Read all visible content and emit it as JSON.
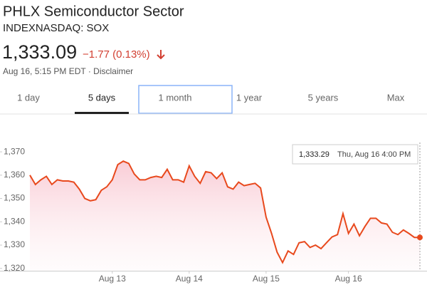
{
  "header": {
    "title": "PHLX Semiconductor Sector",
    "ticker": "INDEXNASDAQ: SOX",
    "price": "1,333.09",
    "change": "−1.77 (0.13%)",
    "timestamp": "Aug 16, 5:15 PM EDT · Disclaimer"
  },
  "tabs": [
    "1 day",
    "5 days",
    "1 month",
    "1 year",
    "5 years",
    "Max"
  ],
  "tooltip": {
    "value": "1,333.29",
    "time": "Thu, Aug 16 4:00 PM"
  },
  "chart_data": {
    "type": "line",
    "color": "#e8491d",
    "grid": false,
    "categories": [
      null,
      null,
      null,
      null,
      null,
      null,
      null,
      null,
      null,
      null,
      null,
      null,
      null,
      null,
      null,
      "Aug 13",
      null,
      null,
      null,
      null,
      null,
      null,
      null,
      null,
      null,
      null,
      null,
      null,
      null,
      "Aug 14",
      null,
      null,
      null,
      null,
      null,
      null,
      null,
      null,
      null,
      null,
      null,
      null,
      null,
      "Aug 15",
      null,
      null,
      null,
      null,
      null,
      null,
      null,
      null,
      null,
      null,
      null,
      null,
      null,
      null,
      "Aug 16",
      null,
      null,
      null,
      null,
      null,
      null,
      null,
      null,
      null,
      null,
      null,
      null,
      null
    ],
    "values": [
      1360,
      1356,
      1358,
      1359.5,
      1356,
      1358,
      1357.5,
      1357.5,
      1357,
      1354,
      1350,
      1349,
      1349.5,
      1353.5,
      1355,
      1358,
      1364.5,
      1366,
      1365,
      1360.5,
      1358,
      1358,
      1359,
      1359.5,
      1359,
      1362.5,
      1358,
      1358,
      1357,
      1364,
      1359.5,
      1356.5,
      1361.5,
      1361,
      1358.5,
      1361,
      1355,
      1354,
      1357,
      1355.5,
      1356,
      1356.5,
      1354.5,
      1342,
      1335,
      1327,
      1322.5,
      1327.5,
      1326,
      1331,
      1331.5,
      1329,
      1330,
      1328.5,
      1331,
      1333.5,
      1334.5,
      1343.5,
      1335,
      1339,
      1334,
      1338,
      1341.5,
      1341.5,
      1339.5,
      1339,
      1335.5,
      1334.5,
      1336.5,
      1335,
      1333.3,
      1333.29
    ],
    "ylim": [
      1319,
      1374
    ],
    "yticks": [
      {
        "value": 1320,
        "label": "1,320"
      },
      {
        "value": 1330,
        "label": "1,330"
      },
      {
        "value": 1340,
        "label": "1,340"
      },
      {
        "value": 1350,
        "label": "1,350"
      },
      {
        "value": 1360,
        "label": "1,360"
      },
      {
        "value": 1370,
        "label": "1,370"
      }
    ]
  }
}
